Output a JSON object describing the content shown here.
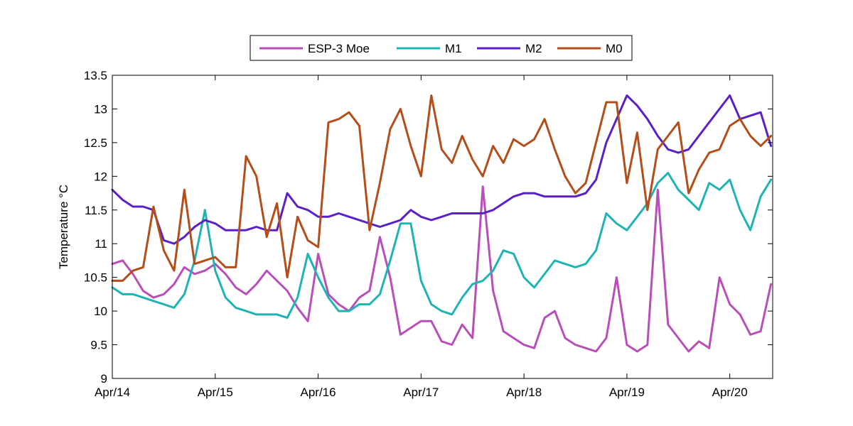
{
  "chart_data": {
    "type": "line",
    "title": "",
    "xlabel": "",
    "ylabel": "Temperature °C",
    "x_ticks": [
      "Apr/14",
      "Apr/15",
      "Apr/16",
      "Apr/17",
      "Apr/18",
      "Apr/19",
      "Apr/20"
    ],
    "xlim": [
      "Apr/14 00:00",
      "Apr/20 10:00"
    ],
    "ylim": [
      9,
      13.5
    ],
    "y_ticks": [
      9,
      9.5,
      10,
      10.5,
      11,
      11.5,
      12,
      12.5,
      13,
      13.5
    ],
    "grid": false,
    "legend_position": "top-center",
    "legend_orientation": "horizontal",
    "series": [
      {
        "name": "ESP-3 Moe",
        "color": "#b84fb8",
        "x": [
          0,
          0.1,
          0.2,
          0.3,
          0.4,
          0.5,
          0.6,
          0.7,
          0.8,
          0.9,
          1,
          1.1,
          1.2,
          1.3,
          1.4,
          1.5,
          1.6,
          1.7,
          1.8,
          1.9,
          2,
          2.1,
          2.2,
          2.3,
          2.4,
          2.5,
          2.6,
          2.7,
          2.8,
          2.9,
          3,
          3.1,
          3.2,
          3.3,
          3.4,
          3.5,
          3.6,
          3.7,
          3.8,
          3.9,
          4,
          4.1,
          4.2,
          4.3,
          4.4,
          4.5,
          4.6,
          4.7,
          4.8,
          4.9,
          5,
          5.1,
          5.2,
          5.3,
          5.4,
          5.5,
          5.6,
          5.7,
          5.8,
          5.9,
          6,
          6.1,
          6.2,
          6.3,
          6.4
        ],
        "y": [
          10.7,
          10.75,
          10.55,
          10.3,
          10.2,
          10.25,
          10.4,
          10.65,
          10.55,
          10.6,
          10.7,
          10.55,
          10.35,
          10.25,
          10.4,
          10.6,
          10.45,
          10.3,
          10.05,
          9.85,
          10.85,
          10.25,
          10.1,
          10.0,
          10.2,
          10.3,
          11.1,
          10.5,
          9.65,
          9.75,
          9.85,
          9.85,
          9.55,
          9.5,
          9.8,
          9.6,
          11.85,
          10.3,
          9.7,
          9.6,
          9.5,
          9.45,
          9.9,
          10.0,
          9.6,
          9.5,
          9.45,
          9.4,
          9.6,
          10.5,
          9.5,
          9.4,
          9.5,
          11.8,
          9.8,
          9.6,
          9.4,
          9.55,
          9.45,
          10.5,
          10.1,
          9.95,
          9.65,
          9.7,
          10.4
        ]
      },
      {
        "name": "M1",
        "color": "#1fb3b3",
        "x": [
          0,
          0.1,
          0.2,
          0.3,
          0.4,
          0.5,
          0.6,
          0.7,
          0.8,
          0.9,
          1,
          1.1,
          1.2,
          1.3,
          1.4,
          1.5,
          1.6,
          1.7,
          1.8,
          1.9,
          2,
          2.1,
          2.2,
          2.3,
          2.4,
          2.5,
          2.6,
          2.7,
          2.8,
          2.9,
          3,
          3.1,
          3.2,
          3.3,
          3.4,
          3.5,
          3.6,
          3.7,
          3.8,
          3.9,
          4,
          4.1,
          4.2,
          4.3,
          4.4,
          4.5,
          4.6,
          4.7,
          4.8,
          4.9,
          5,
          5.1,
          5.2,
          5.3,
          5.4,
          5.5,
          5.6,
          5.7,
          5.8,
          5.9,
          6,
          6.1,
          6.2,
          6.3,
          6.4
        ],
        "y": [
          10.35,
          10.25,
          10.25,
          10.2,
          10.15,
          10.1,
          10.05,
          10.25,
          10.75,
          11.5,
          10.6,
          10.2,
          10.05,
          10.0,
          9.95,
          9.95,
          9.95,
          9.9,
          10.2,
          10.85,
          10.5,
          10.2,
          10.0,
          10.0,
          10.1,
          10.1,
          10.25,
          10.75,
          11.3,
          11.3,
          10.45,
          10.1,
          10.0,
          9.95,
          10.2,
          10.4,
          10.45,
          10.6,
          10.9,
          10.85,
          10.5,
          10.35,
          10.55,
          10.75,
          10.7,
          10.65,
          10.7,
          10.9,
          11.45,
          11.3,
          11.2,
          11.4,
          11.6,
          11.9,
          12.05,
          11.8,
          11.65,
          11.5,
          11.9,
          11.8,
          11.95,
          11.5,
          11.2,
          11.7,
          11.95
        ]
      },
      {
        "name": "M2",
        "color": "#5b1fc9",
        "x": [
          0,
          0.1,
          0.2,
          0.3,
          0.4,
          0.5,
          0.6,
          0.7,
          0.8,
          0.9,
          1,
          1.1,
          1.2,
          1.3,
          1.4,
          1.5,
          1.6,
          1.7,
          1.8,
          1.9,
          2,
          2.1,
          2.2,
          2.3,
          2.4,
          2.5,
          2.6,
          2.7,
          2.8,
          2.9,
          3,
          3.1,
          3.2,
          3.3,
          3.4,
          3.5,
          3.6,
          3.7,
          3.8,
          3.9,
          4,
          4.1,
          4.2,
          4.3,
          4.4,
          4.5,
          4.6,
          4.7,
          4.8,
          4.9,
          5,
          5.1,
          5.2,
          5.3,
          5.4,
          5.5,
          5.6,
          5.7,
          5.8,
          5.9,
          6,
          6.1,
          6.2,
          6.3,
          6.4
        ],
        "y": [
          11.8,
          11.65,
          11.55,
          11.55,
          11.5,
          11.05,
          11.0,
          11.1,
          11.25,
          11.35,
          11.3,
          11.2,
          11.2,
          11.2,
          11.25,
          11.2,
          11.2,
          11.75,
          11.55,
          11.5,
          11.4,
          11.4,
          11.45,
          11.4,
          11.35,
          11.3,
          11.25,
          11.3,
          11.35,
          11.5,
          11.4,
          11.35,
          11.4,
          11.45,
          11.45,
          11.45,
          11.45,
          11.5,
          11.6,
          11.7,
          11.75,
          11.75,
          11.7,
          11.7,
          11.7,
          11.7,
          11.75,
          11.95,
          12.5,
          12.85,
          13.2,
          13.05,
          12.85,
          12.6,
          12.4,
          12.35,
          12.4,
          12.6,
          12.8,
          13.0,
          13.2,
          12.85,
          12.9,
          12.95,
          12.45
        ]
      },
      {
        "name": "M0",
        "color": "#b34e1a",
        "x": [
          0,
          0.1,
          0.2,
          0.3,
          0.4,
          0.5,
          0.6,
          0.7,
          0.8,
          0.9,
          1,
          1.1,
          1.2,
          1.3,
          1.4,
          1.5,
          1.6,
          1.7,
          1.8,
          1.9,
          2,
          2.1,
          2.2,
          2.3,
          2.4,
          2.5,
          2.6,
          2.7,
          2.8,
          2.9,
          3,
          3.1,
          3.2,
          3.3,
          3.4,
          3.5,
          3.6,
          3.7,
          3.8,
          3.9,
          4,
          4.1,
          4.2,
          4.3,
          4.4,
          4.5,
          4.6,
          4.7,
          4.8,
          4.9,
          5,
          5.1,
          5.2,
          5.3,
          5.4,
          5.5,
          5.6,
          5.7,
          5.8,
          5.9,
          6,
          6.1,
          6.2,
          6.3,
          6.4
        ],
        "y": [
          10.45,
          10.45,
          10.6,
          10.65,
          11.55,
          10.9,
          10.6,
          11.8,
          10.7,
          10.75,
          10.8,
          10.65,
          10.65,
          12.3,
          12.0,
          11.1,
          11.6,
          10.5,
          11.4,
          11.05,
          10.95,
          12.8,
          12.85,
          12.95,
          12.75,
          11.2,
          11.9,
          12.7,
          13.0,
          12.45,
          12.0,
          13.2,
          12.4,
          12.2,
          12.6,
          12.25,
          12.0,
          12.45,
          12.2,
          12.55,
          12.45,
          12.55,
          12.85,
          12.4,
          12.0,
          11.75,
          11.9,
          12.5,
          13.1,
          13.1,
          11.9,
          12.65,
          11.5,
          12.4,
          12.6,
          12.8,
          11.75,
          12.1,
          12.35,
          12.4,
          12.75,
          12.85,
          12.6,
          12.45,
          12.6
        ]
      }
    ]
  }
}
